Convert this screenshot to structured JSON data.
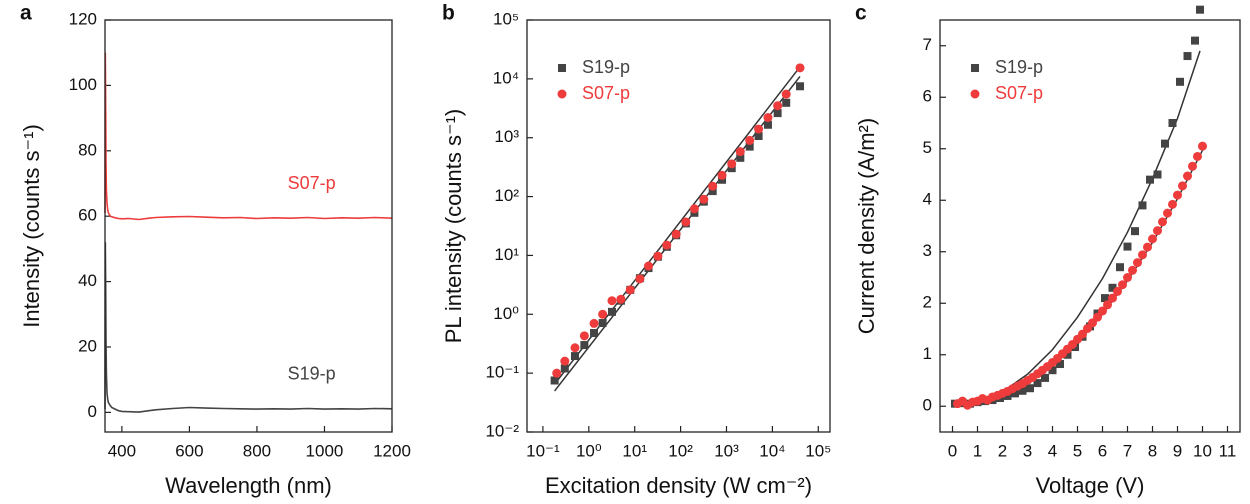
{
  "chart_data": [
    {
      "panel_label": "a",
      "type": "line",
      "xlabel": "Wavelength (nm)",
      "ylabel": "Intensity (counts s⁻¹)",
      "xlim": [
        350,
        1200
      ],
      "ylim": [
        -6,
        120
      ],
      "xticks": [
        400,
        600,
        800,
        1000,
        1200
      ],
      "yticks": [
        0,
        20,
        40,
        60,
        80,
        100,
        120
      ],
      "series": [
        {
          "name": "S07-p",
          "color": "#ee3b3b",
          "x": [
            350,
            351,
            352,
            353,
            354,
            356,
            358,
            360,
            363,
            366,
            370,
            380,
            390,
            400,
            420,
            450,
            480,
            500,
            550,
            600,
            650,
            700,
            750,
            800,
            850,
            900,
            950,
            1000,
            1050,
            1100,
            1150,
            1200
          ],
          "values": [
            61,
            110,
            92,
            76,
            68,
            64,
            62,
            61,
            60.5,
            60,
            59.8,
            59.5,
            59.3,
            59.2,
            59.3,
            59,
            59.4,
            59.6,
            59.8,
            59.9,
            59.7,
            59.5,
            59.6,
            59.3,
            59.5,
            59.4,
            59.6,
            59.3,
            59.5,
            59.4,
            59.6,
            59.4
          ]
        },
        {
          "name": "S19-p",
          "color": "#444444",
          "x": [
            350,
            351,
            352,
            353,
            354,
            356,
            358,
            360,
            363,
            366,
            370,
            380,
            390,
            400,
            420,
            450,
            480,
            500,
            550,
            600,
            650,
            700,
            750,
            800,
            850,
            900,
            950,
            1000,
            1050,
            1100,
            1150,
            1200
          ],
          "values": [
            1,
            52,
            38,
            22,
            12,
            6,
            4,
            3,
            2.5,
            2,
            1.5,
            1,
            0.5,
            0.3,
            0.2,
            0.1,
            0.5,
            0.8,
            1.2,
            1.5,
            1.3,
            1.2,
            1.1,
            1,
            1.1,
            1,
            1.2,
            1,
            1.1,
            1,
            1.2,
            1.1
          ]
        }
      ]
    },
    {
      "panel_label": "b",
      "type": "scatter",
      "xlabel": "Excitation density (W cm⁻²)",
      "ylabel": "PL intensity (counts s⁻¹)",
      "xscale": "log",
      "yscale": "log",
      "legend": "upper left",
      "xlim": [
        0.045,
        180000
      ],
      "ylim": [
        0.01,
        100000
      ],
      "xticks": [
        {
          "value": 0.1,
          "label": "10⁻¹"
        },
        {
          "value": 1,
          "label": "10⁰"
        },
        {
          "value": 10,
          "label": "10¹"
        },
        {
          "value": 100,
          "label": "10²"
        },
        {
          "value": 1000,
          "label": "10³"
        },
        {
          "value": 10000,
          "label": "10⁴"
        },
        {
          "value": 100000,
          "label": "10⁵"
        }
      ],
      "yticks": [
        {
          "value": 0.01,
          "label": "10⁻²"
        },
        {
          "value": 0.1,
          "label": "10⁻¹"
        },
        {
          "value": 1,
          "label": "10⁰"
        },
        {
          "value": 10,
          "label": "10¹"
        },
        {
          "value": 100,
          "label": "10²"
        },
        {
          "value": 1000,
          "label": "10³"
        },
        {
          "value": 10000,
          "label": "10⁴"
        },
        {
          "value": 100000,
          "label": "10⁵"
        }
      ],
      "series": [
        {
          "name": "S19-p",
          "color": "#444444",
          "marker": "square",
          "x": [
            0.18,
            0.3,
            0.5,
            0.8,
            1.3,
            2,
            3.2,
            5,
            8,
            13,
            20,
            32,
            50,
            80,
            130,
            200,
            320,
            500,
            800,
            1300,
            2000,
            3200,
            5000,
            8000,
            13000,
            20000,
            40000
          ],
          "values": [
            0.075,
            0.12,
            0.195,
            0.3,
            0.48,
            0.71,
            1.1,
            1.7,
            2.6,
            4.1,
            6.1,
            9.5,
            14,
            22,
            35,
            53,
            82,
            124,
            193,
            304,
            455,
            706,
            1070,
            1660,
            2620,
            3920,
            7480
          ]
        },
        {
          "name": "S07-p",
          "color": "#ee3b3b",
          "marker": "circle",
          "x": [
            0.2,
            0.3,
            0.5,
            0.8,
            1.3,
            2,
            3.2,
            5,
            8,
            13,
            20,
            32,
            50,
            80,
            130,
            200,
            320,
            500,
            800,
            1300,
            2000,
            3200,
            5000,
            8000,
            13000,
            20000,
            40000
          ],
          "values": [
            0.1,
            0.16,
            0.27,
            0.43,
            0.7,
            1.0,
            1.7,
            1.8,
            2.6,
            4.0,
            6.6,
            9.7,
            15,
            23,
            37,
            62,
            90,
            150,
            230,
            360,
            580,
            900,
            1400,
            2200,
            3500,
            5500,
            15400
          ]
        }
      ],
      "fits": [
        {
          "color": "#333333",
          "x": [
            0.18,
            40000
          ],
          "values": [
            0.05,
            11000
          ]
        },
        {
          "color": "#333333",
          "x": [
            0.18,
            40000
          ],
          "values": [
            0.065,
            16000
          ]
        }
      ]
    },
    {
      "panel_label": "c",
      "type": "scatter",
      "xlabel": "Voltage (V)",
      "ylabel": "Current density (A/m²)",
      "legend": "upper left",
      "xlim": [
        -0.5,
        11.5
      ],
      "ylim": [
        -0.5,
        7.5
      ],
      "xticks": [
        0,
        1,
        2,
        3,
        4,
        5,
        6,
        7,
        8,
        9,
        10,
        11
      ],
      "yticks": [
        0,
        1,
        2,
        3,
        4,
        5,
        6,
        7
      ],
      "series": [
        {
          "name": "S19-p",
          "color": "#444444",
          "marker": "square",
          "x": [
            0.1,
            0.4,
            0.7,
            1.0,
            1.3,
            1.6,
            1.9,
            2.2,
            2.5,
            2.8,
            3.1,
            3.4,
            3.7,
            4.0,
            4.3,
            4.6,
            4.9,
            5.2,
            5.5,
            5.8,
            6.1,
            6.4,
            6.7,
            7.0,
            7.3,
            7.6,
            7.9,
            8.2,
            8.5,
            8.8,
            9.1,
            9.4,
            9.7,
            9.9
          ],
          "values": [
            0.05,
            0.06,
            0.05,
            0.08,
            0.1,
            0.12,
            0.16,
            0.2,
            0.25,
            0.3,
            0.35,
            0.45,
            0.55,
            0.7,
            0.82,
            1.0,
            1.15,
            1.35,
            1.55,
            1.8,
            2.1,
            2.3,
            2.7,
            3.1,
            3.4,
            3.9,
            4.4,
            4.5,
            5.1,
            5.5,
            6.3,
            6.8,
            7.1,
            7.7
          ]
        },
        {
          "name": "S07-p",
          "color": "#ee3b3b",
          "marker": "circle",
          "x": [
            0.2,
            0.4,
            0.6,
            0.8,
            1.0,
            1.2,
            1.4,
            1.6,
            1.8,
            2.0,
            2.2,
            2.4,
            2.6,
            2.8,
            3.0,
            3.2,
            3.4,
            3.6,
            3.8,
            4.0,
            4.2,
            4.4,
            4.6,
            4.8,
            5.0,
            5.2,
            5.4,
            5.6,
            5.8,
            6.0,
            6.2,
            6.4,
            6.6,
            6.8,
            7.0,
            7.2,
            7.4,
            7.6,
            7.8,
            8.0,
            8.2,
            8.4,
            8.6,
            8.8,
            9.0,
            9.2,
            9.4,
            9.6,
            9.8,
            10.0
          ],
          "values": [
            0.05,
            0.1,
            0.02,
            0.08,
            0.1,
            0.15,
            0.12,
            0.18,
            0.21,
            0.25,
            0.29,
            0.34,
            0.39,
            0.44,
            0.5,
            0.56,
            0.63,
            0.7,
            0.77,
            0.85,
            0.93,
            1.02,
            1.11,
            1.2,
            1.3,
            1.4,
            1.51,
            1.62,
            1.73,
            1.85,
            1.97,
            2.1,
            2.23,
            2.36,
            2.5,
            2.64,
            2.79,
            2.94,
            3.09,
            3.25,
            3.41,
            3.58,
            3.75,
            3.92,
            4.1,
            4.28,
            4.47,
            4.66,
            4.85,
            5.05
          ]
        }
      ],
      "fits": [
        {
          "color": "#333333",
          "x": [
            0,
            1,
            2,
            3,
            4,
            5,
            6,
            7,
            8,
            9,
            9.9
          ],
          "values": [
            0,
            0.07,
            0.28,
            0.62,
            1.1,
            1.73,
            2.48,
            3.38,
            4.42,
            5.59,
            6.9
          ]
        },
        {
          "color": "#333333",
          "x": [
            0,
            1,
            2,
            3,
            4,
            5,
            6,
            7,
            8,
            9,
            10
          ],
          "values": [
            0,
            0.05,
            0.2,
            0.45,
            0.8,
            1.24,
            1.79,
            2.44,
            3.18,
            4.03,
            4.97
          ]
        }
      ]
    }
  ]
}
